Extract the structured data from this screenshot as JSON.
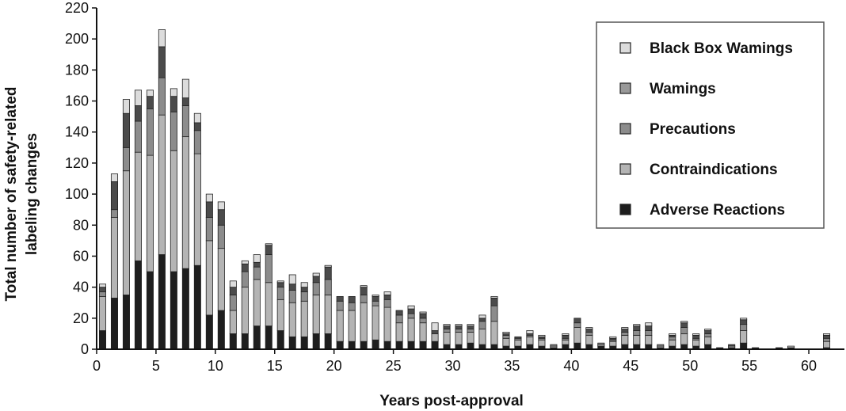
{
  "chart_data": {
    "type": "bar",
    "stacked": true,
    "xlabel": "Years post-approval",
    "ylabel_lines": [
      "Total number of safety-related",
      "labeling changes"
    ],
    "xlim": [
      0,
      63
    ],
    "ylim": [
      0,
      220
    ],
    "x_ticks": [
      0,
      5,
      10,
      15,
      20,
      25,
      30,
      35,
      40,
      45,
      50,
      55,
      60
    ],
    "y_ticks": [
      0,
      20,
      40,
      60,
      80,
      100,
      120,
      140,
      160,
      180,
      200,
      220
    ],
    "grid": false,
    "legend_position": "top-right",
    "x": [
      0.5,
      1.5,
      2.5,
      3.5,
      4.5,
      5.5,
      6.5,
      7.5,
      8.5,
      9.5,
      10.5,
      11.5,
      12.5,
      13.5,
      14.5,
      15.5,
      16.5,
      17.5,
      18.5,
      19.5,
      20.5,
      21.5,
      22.5,
      23.5,
      24.5,
      25.5,
      26.5,
      27.5,
      28.5,
      29.5,
      30.5,
      31.5,
      32.5,
      33.5,
      34.5,
      35.5,
      36.5,
      37.5,
      38.5,
      39.5,
      40.5,
      41.5,
      42.5,
      43.5,
      44.5,
      45.5,
      46.5,
      47.5,
      48.5,
      49.5,
      50.5,
      51.5,
      52.5,
      53.5,
      54.5,
      55.5,
      56.5,
      57.5,
      58.5,
      59.5,
      60.5,
      61.5,
      62.5
    ],
    "series": [
      {
        "name": "Adverse Reactions",
        "color": "#1e1e1e",
        "values": [
          12,
          33,
          35,
          57,
          50,
          61,
          50,
          52,
          54,
          22,
          25,
          10,
          10,
          15,
          15,
          12,
          8,
          8,
          10,
          10,
          5,
          5,
          5,
          6,
          5,
          5,
          5,
          5,
          5,
          3,
          3,
          4,
          3,
          3,
          2,
          2,
          3,
          2,
          1,
          3,
          4,
          3,
          2,
          2,
          3,
          3,
          3,
          1,
          2,
          3,
          2,
          3,
          1,
          1,
          4,
          1,
          0,
          1,
          1,
          0,
          0,
          1,
          0
        ]
      },
      {
        "name": "Contraindications",
        "color": "#b4b4b4",
        "values": [
          22,
          52,
          80,
          70,
          75,
          90,
          78,
          85,
          72,
          48,
          40,
          15,
          30,
          30,
          28,
          20,
          22,
          23,
          25,
          25,
          20,
          20,
          25,
          22,
          22,
          12,
          15,
          12,
          5,
          8,
          8,
          7,
          10,
          15,
          5,
          4,
          5,
          4,
          1,
          3,
          10,
          6,
          1,
          3,
          6,
          6,
          6,
          1,
          4,
          7,
          4,
          5,
          0,
          1,
          8,
          0,
          0,
          0,
          0,
          0,
          0,
          4,
          0
        ]
      },
      {
        "name": "Precautions",
        "color": "#8c8c8c",
        "values": [
          3,
          5,
          15,
          20,
          30,
          24,
          25,
          20,
          15,
          15,
          15,
          10,
          10,
          8,
          18,
          8,
          8,
          6,
          8,
          10,
          6,
          5,
          5,
          3,
          5,
          5,
          3,
          3,
          0,
          2,
          2,
          2,
          5,
          10,
          2,
          1,
          1,
          1,
          1,
          1,
          3,
          2,
          1,
          1,
          2,
          3,
          3,
          1,
          2,
          4,
          1,
          2,
          0,
          0,
          4,
          0,
          0,
          0,
          0,
          0,
          0,
          2,
          0
        ]
      },
      {
        "name": "Warnings",
        "color": "#4b4b4b",
        "values": [
          3,
          18,
          22,
          10,
          8,
          20,
          10,
          5,
          5,
          10,
          10,
          5,
          5,
          3,
          6,
          3,
          4,
          3,
          4,
          8,
          3,
          4,
          5,
          3,
          3,
          3,
          3,
          3,
          2,
          2,
          2,
          2,
          2,
          5,
          1,
          1,
          1,
          1,
          0,
          2,
          3,
          2,
          0,
          1,
          2,
          3,
          3,
          0,
          1,
          3,
          2,
          2,
          0,
          1,
          3,
          0,
          0,
          0,
          0,
          0,
          0,
          2,
          0
        ]
      },
      {
        "name": "Black Box Wamings",
        "color": "#dcdcdc",
        "values": [
          2,
          5,
          9,
          10,
          4,
          11,
          5,
          12,
          6,
          5,
          5,
          4,
          2,
          5,
          1,
          1,
          6,
          3,
          2,
          1,
          0,
          0,
          1,
          1,
          2,
          0,
          2,
          1,
          5,
          1,
          1,
          1,
          2,
          1,
          1,
          0,
          2,
          1,
          0,
          1,
          0,
          1,
          0,
          1,
          1,
          1,
          2,
          0,
          1,
          1,
          1,
          1,
          0,
          0,
          1,
          0,
          0,
          0,
          1,
          0,
          0,
          1,
          0
        ]
      }
    ],
    "legend_order": [
      "Black Box Wamings",
      "Wamings",
      "Precautions",
      "Contraindications",
      "Adverse Reactions"
    ]
  }
}
